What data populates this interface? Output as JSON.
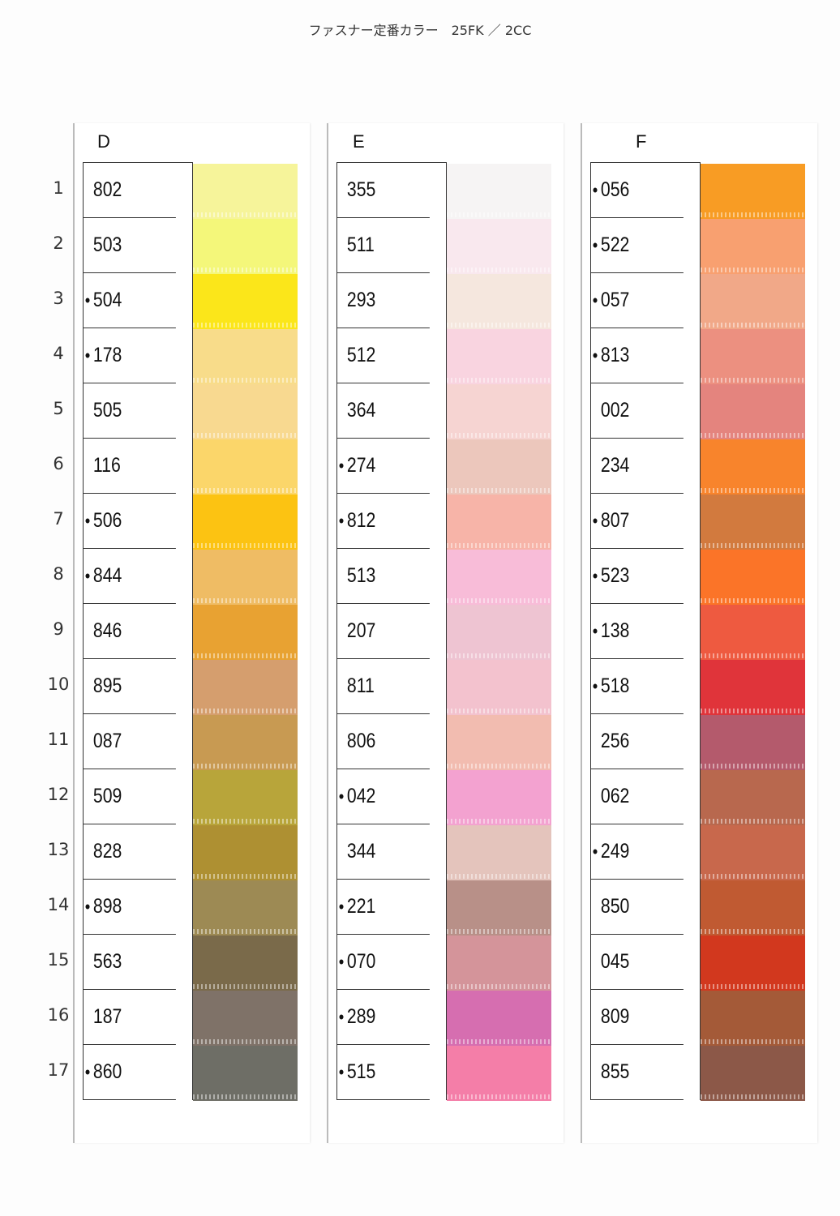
{
  "title": "ファスナー定番カラー　25FK ／ 2CC",
  "row_numbers": [
    "1",
    "2",
    "3",
    "4",
    "5",
    "6",
    "7",
    "8",
    "9",
    "10",
    "11",
    "12",
    "13",
    "14",
    "15",
    "16",
    "17"
  ],
  "columns": [
    {
      "letter": "D",
      "items": [
        {
          "code": "802",
          "dot": false,
          "color": "#f6f49a"
        },
        {
          "code": "503",
          "dot": false,
          "color": "#f4f77a"
        },
        {
          "code": "504",
          "dot": true,
          "color": "#fbe61a"
        },
        {
          "code": "178",
          "dot": true,
          "color": "#f8dc8a"
        },
        {
          "code": "505",
          "dot": false,
          "color": "#f8d990"
        },
        {
          "code": "116",
          "dot": false,
          "color": "#fbd66a"
        },
        {
          "code": "506",
          "dot": true,
          "color": "#fcc312"
        },
        {
          "code": "844",
          "dot": true,
          "color": "#efbc64"
        },
        {
          "code": "846",
          "dot": false,
          "color": "#e8a232"
        },
        {
          "code": "895",
          "dot": false,
          "color": "#d59e6e"
        },
        {
          "code": "087",
          "dot": false,
          "color": "#c89a52"
        },
        {
          "code": "509",
          "dot": false,
          "color": "#b8a53a"
        },
        {
          "code": "828",
          "dot": false,
          "color": "#ae9032"
        },
        {
          "code": "898",
          "dot": true,
          "color": "#9d8a54"
        },
        {
          "code": "563",
          "dot": false,
          "color": "#7a6a4a"
        },
        {
          "code": "187",
          "dot": false,
          "color": "#7f7268"
        },
        {
          "code": "860",
          "dot": true,
          "color": "#6e6e66"
        }
      ]
    },
    {
      "letter": "E",
      "items": [
        {
          "code": "355",
          "dot": false,
          "color": "#f6f4f4"
        },
        {
          "code": "511",
          "dot": false,
          "color": "#f9e8ee"
        },
        {
          "code": "293",
          "dot": false,
          "color": "#f5e7de"
        },
        {
          "code": "512",
          "dot": false,
          "color": "#f9d4e0"
        },
        {
          "code": "364",
          "dot": false,
          "color": "#f6d4d2"
        },
        {
          "code": "274",
          "dot": true,
          "color": "#ecc7bc"
        },
        {
          "code": "812",
          "dot": true,
          "color": "#f7b4a8"
        },
        {
          "code": "513",
          "dot": false,
          "color": "#f8bcd8"
        },
        {
          "code": "207",
          "dot": false,
          "color": "#eec4d2"
        },
        {
          "code": "811",
          "dot": false,
          "color": "#f3c2ce"
        },
        {
          "code": "806",
          "dot": false,
          "color": "#f2bcb0"
        },
        {
          "code": "042",
          "dot": true,
          "color": "#f3a2d0"
        },
        {
          "code": "344",
          "dot": false,
          "color": "#e4c4bc"
        },
        {
          "code": "221",
          "dot": true,
          "color": "#b89088"
        },
        {
          "code": "070",
          "dot": true,
          "color": "#d4949a"
        },
        {
          "code": "289",
          "dot": true,
          "color": "#d66eb0"
        },
        {
          "code": "515",
          "dot": true,
          "color": "#f47ea8"
        }
      ]
    },
    {
      "letter": "F",
      "items": [
        {
          "code": "056",
          "dot": true,
          "color": "#f89c24"
        },
        {
          "code": "522",
          "dot": true,
          "color": "#f8a070"
        },
        {
          "code": "057",
          "dot": true,
          "color": "#f1a888"
        },
        {
          "code": "813",
          "dot": true,
          "color": "#ec9080"
        },
        {
          "code": "002",
          "dot": false,
          "color": "#e4847e"
        },
        {
          "code": "234",
          "dot": false,
          "color": "#f8842c"
        },
        {
          "code": "807",
          "dot": true,
          "color": "#d27a3e"
        },
        {
          "code": "523",
          "dot": true,
          "color": "#fb7428"
        },
        {
          "code": "138",
          "dot": true,
          "color": "#ee5a40"
        },
        {
          "code": "518",
          "dot": true,
          "color": "#e0343a"
        },
        {
          "code": "256",
          "dot": false,
          "color": "#b45a6c"
        },
        {
          "code": "062",
          "dot": false,
          "color": "#b8684e"
        },
        {
          "code": "249",
          "dot": true,
          "color": "#c8684c"
        },
        {
          "code": "850",
          "dot": false,
          "color": "#c05a32"
        },
        {
          "code": "045",
          "dot": false,
          "color": "#d2381e"
        },
        {
          "code": "809",
          "dot": false,
          "color": "#a45a38"
        },
        {
          "code": "855",
          "dot": false,
          "color": "#8c5848"
        }
      ]
    }
  ]
}
